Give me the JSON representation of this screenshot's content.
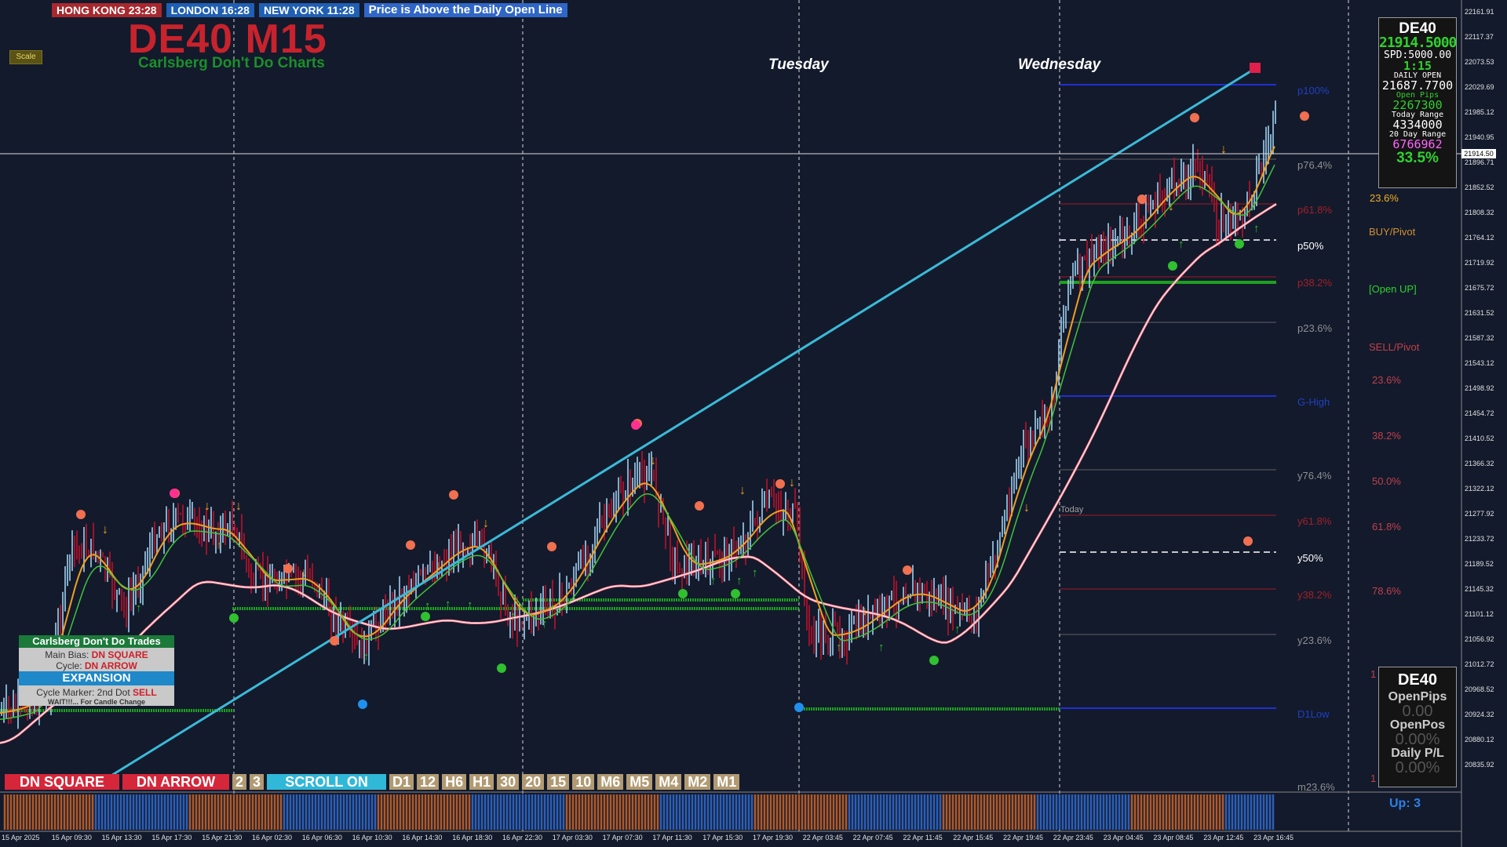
{
  "sessions": {
    "hong_kong": "HONG KONG 23:28",
    "london": "LONDON  16:28",
    "new_york": "NEW YORK  11:28",
    "message": "Price is Above the Daily Open Line"
  },
  "scale_button": "Scale",
  "title": {
    "symbol": "DE40 M15",
    "subtitle": "Carlsberg Don't Do Charts"
  },
  "day_labels": {
    "tuesday": "Tuesday",
    "wednesday": "Wednesday"
  },
  "info_panel": {
    "symbol": "DE40",
    "price": "21914.5000",
    "spread": "SPD:5000.00",
    "timer": "1:15",
    "daily_open_label": "DAILY OPEN",
    "daily_open": "21687.7700",
    "open_pips_label": "Open Pips",
    "open_pips": "2267300",
    "today_range_label": "Today Range",
    "today_range": "4334000",
    "day20_range_label": "20 Day Range",
    "day20_range": "6766962",
    "pct": "33.5%"
  },
  "pl_panel": {
    "symbol": "DE40",
    "open_pips_label": "OpenPips",
    "open_pips": "0.00",
    "open_pos_label": "OpenPos",
    "open_pos": "0.00%",
    "daily_pl_label": "Daily P/L",
    "daily_pl": "0.00%"
  },
  "trades_panel": {
    "header": "Carlsberg Don't Do Trades",
    "main_bias_label": "Main Bias:",
    "main_bias_value": "DN SQUARE",
    "cycle_label": "Cycle:",
    "cycle_value": "DN ARROW",
    "state": "EXPANSION",
    "cycle_marker_label": "Cycle Marker: 2nd Dot",
    "cycle_marker_value": "SELL",
    "note": "WAIT!!!... For Candle Change"
  },
  "bottom_buttons": [
    "DN SQUARE",
    "DN ARROW",
    "2",
    "3",
    "SCROLL ON",
    "D1",
    "12",
    "H6",
    "H1",
    "30",
    "20",
    "15",
    "10",
    "M6",
    "M5",
    "M4",
    "M2",
    "M1"
  ],
  "current_price_tag": "21914.50",
  "up_label": "Up: 3",
  "right_labels": {
    "pct_23_6": "23.6%",
    "buy_pivot": "BUY/Pivot",
    "open_up": "[Open UP]",
    "sell_pivot": "SELL/Pivot",
    "r23": "23.6%",
    "r38": "38.2%",
    "r50": "50.0%",
    "r61": "61.8%",
    "r78": "78.6%",
    "r1a": "1",
    "r1b": "1"
  },
  "fib_labels": {
    "p100": "p100%",
    "p76": "p76.4%",
    "p61": "p61.8%",
    "p50": "p50%",
    "p38": "p38.2%",
    "p23": "p23.6%",
    "ghigh": "G-High",
    "y76": "y76.4%",
    "y61": "y61.8%",
    "y50": "y50%",
    "y38": "y38.2%",
    "y23": "y23.6%",
    "dlow": "D1Low",
    "m23": "m23.6%",
    "tday": "Today"
  },
  "price_axis": [
    "22161.91",
    "22117.37",
    "22073.53",
    "22029.69",
    "21985.12",
    "21940.95",
    "21896.71",
    "21852.52",
    "21808.32",
    "21764.12",
    "21719.92",
    "21675.72",
    "21631.52",
    "21587.32",
    "21543.12",
    "21498.92",
    "21454.72",
    "21410.52",
    "21366.32",
    "21322.12",
    "21277.92",
    "21233.72",
    "21189.52",
    "21145.32",
    "21101.12",
    "21056.92",
    "21012.72",
    "20968.52",
    "20924.32",
    "20880.12",
    "20835.92"
  ],
  "time_axis": [
    "15 Apr 2025",
    "15 Apr 09:30",
    "15 Apr 13:30",
    "15 Apr 17:30",
    "15 Apr 21:30",
    "16 Apr 02:30",
    "16 Apr 06:30",
    "16 Apr 10:30",
    "16 Apr 14:30",
    "16 Apr 18:30",
    "16 Apr 22:30",
    "17 Apr 03:30",
    "17 Apr 07:30",
    "17 Apr 11:30",
    "17 Apr 15:30",
    "17 Apr 19:30",
    "22 Apr 03:45",
    "22 Apr 07:45",
    "22 Apr 11:45",
    "22 Apr 15:45",
    "22 Apr 19:45",
    "22 Apr 23:45",
    "23 Apr 04:45",
    "23 Apr 08:45",
    "23 Apr 12:45",
    "23 Apr 16:45"
  ]
}
